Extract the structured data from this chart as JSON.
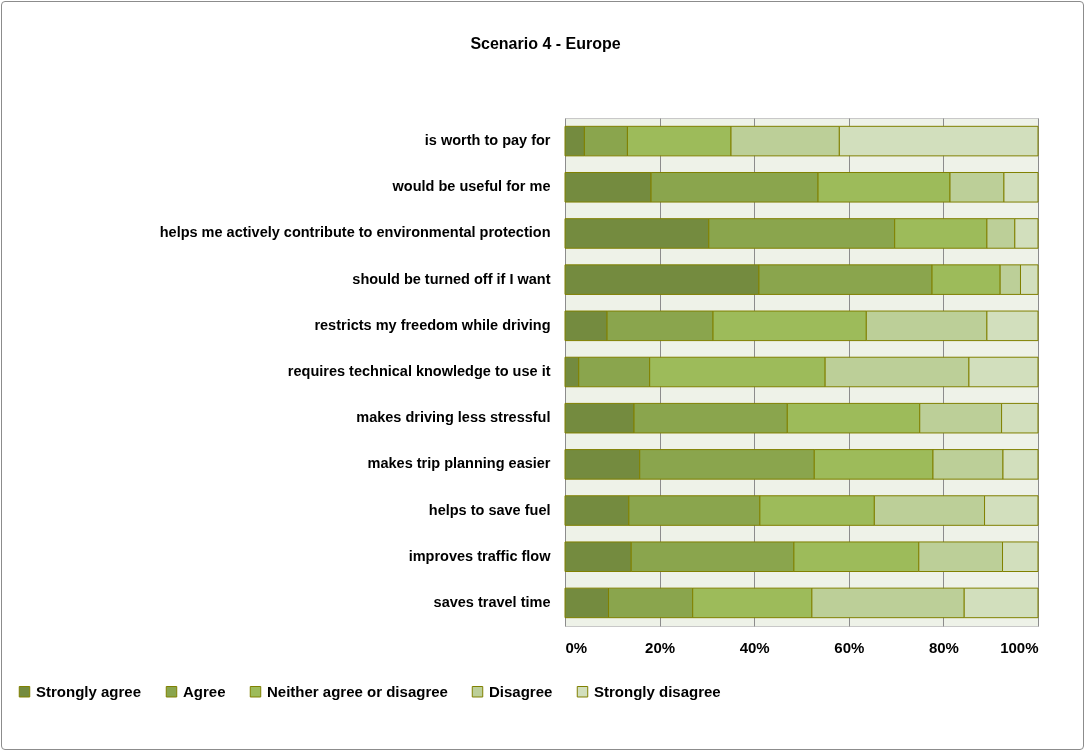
{
  "chart_data": {
    "type": "bar",
    "orientation": "horizontal",
    "stacked": true,
    "title": "Scenario 4 - Europe",
    "categories": [
      "is worth to pay for",
      "would be useful for me",
      "helps me actively contribute to environmental protection",
      "should be turned off if I want",
      "restricts my freedom while driving",
      "requires technical knowledge to use it",
      "makes driving less stressful",
      "makes trip planning easier",
      "helps to save fuel",
      "improves traffic flow",
      "saves travel time"
    ],
    "series": [
      {
        "name": "Strongly agree",
        "color": "#748b3f",
        "values": [
          4.1,
          18.2,
          30.4,
          41.0,
          8.9,
          2.9,
          14.6,
          15.8,
          13.5,
          14.0,
          9.2
        ]
      },
      {
        "name": "Agree",
        "color": "#8aa54d",
        "values": [
          9.1,
          35.3,
          39.3,
          36.6,
          22.4,
          15.0,
          32.4,
          36.9,
          27.7,
          34.4,
          17.8
        ]
      },
      {
        "name": "Neither agree or disagree",
        "color": "#9dbb5a",
        "values": [
          21.9,
          27.9,
          19.5,
          14.4,
          32.4,
          37.1,
          28.0,
          25.1,
          24.2,
          26.4,
          25.2
        ]
      },
      {
        "name": "Disagree",
        "color": "#bccf98",
        "values": [
          22.9,
          11.4,
          5.9,
          4.3,
          25.5,
          30.4,
          17.3,
          14.8,
          23.3,
          17.7,
          32.2
        ]
      },
      {
        "name": "Strongly disagree",
        "color": "#d2dfbd",
        "values": [
          42.0,
          7.2,
          4.9,
          3.7,
          10.8,
          14.6,
          7.7,
          7.4,
          11.3,
          7.5,
          15.6
        ]
      }
    ],
    "xlim": [
      0,
      100
    ],
    "xticks": [
      {
        "value": 0,
        "label": "0%"
      },
      {
        "value": 20,
        "label": "20%"
      },
      {
        "value": 40,
        "label": "40%"
      },
      {
        "value": 60,
        "label": "60%"
      },
      {
        "value": 80,
        "label": "80%"
      },
      {
        "value": 100,
        "label": "100%"
      }
    ],
    "grid": "x",
    "legend": "bottom"
  }
}
